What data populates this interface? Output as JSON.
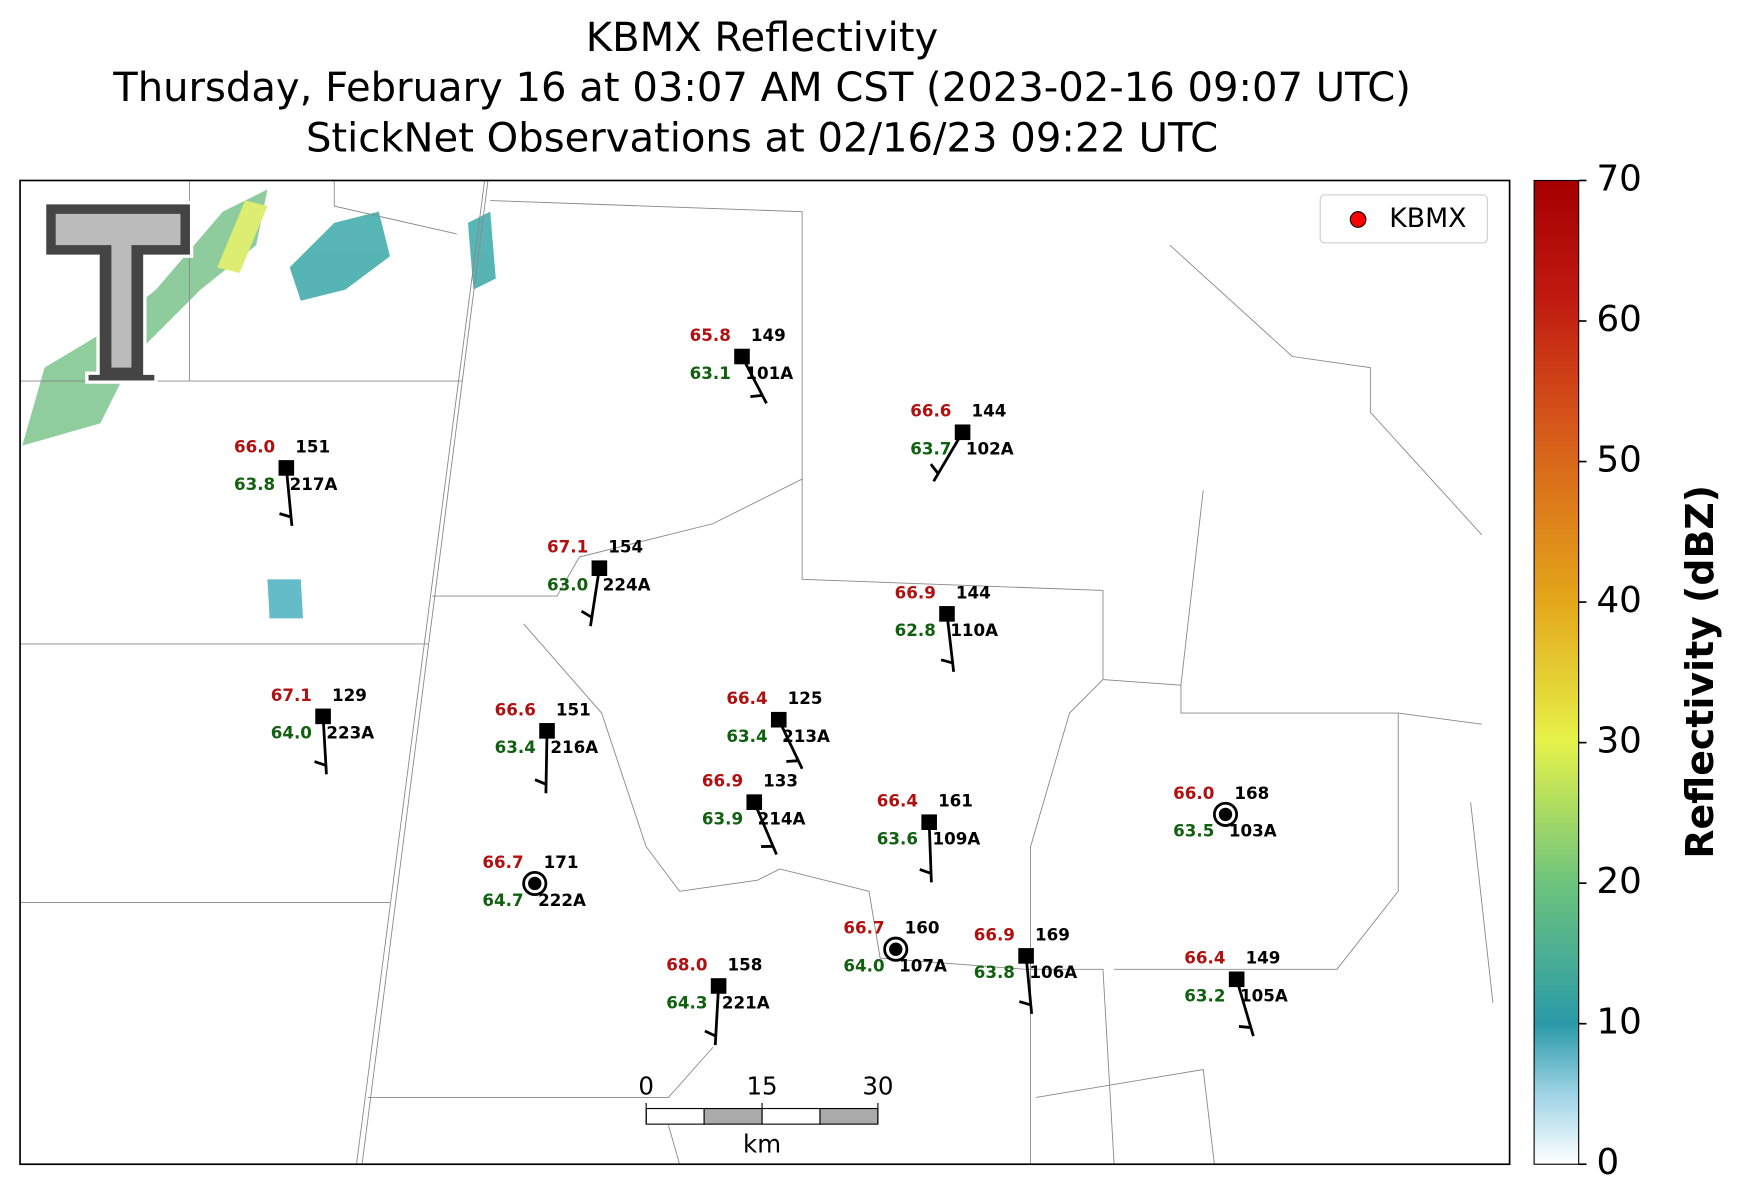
{
  "header": {
    "title": "KBMX Reflectivity",
    "subtitle": "Thursday, February 16 at 03:07 AM CST (2023-02-16 09:07 UTC)",
    "observations": "StickNet Observations at 02/16/23 09:22 UTC"
  },
  "legend": {
    "label": "KBMX",
    "color": "#ff0000"
  },
  "stations": [
    {
      "id": "101A",
      "temperature": "65.8",
      "dewpoint": "63.1",
      "value": "149"
    },
    {
      "id": "102A",
      "temperature": "66.6",
      "dewpoint": "63.7",
      "value": "144"
    },
    {
      "id": "217A",
      "temperature": "66.0",
      "dewpoint": "63.8",
      "value": "151"
    },
    {
      "id": "224A",
      "temperature": "67.1",
      "dewpoint": "63.0",
      "value": "154"
    },
    {
      "id": "110A",
      "temperature": "66.9",
      "dewpoint": "62.8",
      "value": "144"
    },
    {
      "id": "223A",
      "temperature": "67.1",
      "dewpoint": "64.0",
      "value": "129"
    },
    {
      "id": "216A",
      "temperature": "66.6",
      "dewpoint": "63.4",
      "value": "151"
    },
    {
      "id": "213A",
      "temperature": "66.4",
      "dewpoint": "63.4",
      "value": "125"
    },
    {
      "id": "214A",
      "temperature": "66.9",
      "dewpoint": "63.9",
      "value": "133"
    },
    {
      "id": "109A",
      "temperature": "66.4",
      "dewpoint": "63.6",
      "value": "161"
    },
    {
      "id": "103A",
      "temperature": "66.0",
      "dewpoint": "63.5",
      "value": "168"
    },
    {
      "id": "222A",
      "temperature": "66.7",
      "dewpoint": "64.7",
      "value": "171"
    },
    {
      "id": "107A",
      "temperature": "66.7",
      "dewpoint": "64.0",
      "value": "160"
    },
    {
      "id": "106A",
      "temperature": "66.9",
      "dewpoint": "63.8",
      "value": "169"
    },
    {
      "id": "221A",
      "temperature": "68.0",
      "dewpoint": "64.3",
      "value": "158"
    },
    {
      "id": "105A",
      "temperature": "66.4",
      "dewpoint": "63.2",
      "value": "149"
    }
  ],
  "scale_bar": {
    "labels": [
      "0",
      "15",
      "30"
    ],
    "unit": "km"
  },
  "colorbar": {
    "label": "Reflectivity (dBZ)",
    "lim": [
      0,
      70
    ],
    "ticks": [
      0,
      10,
      20,
      30,
      40,
      50,
      60,
      70
    ]
  }
}
